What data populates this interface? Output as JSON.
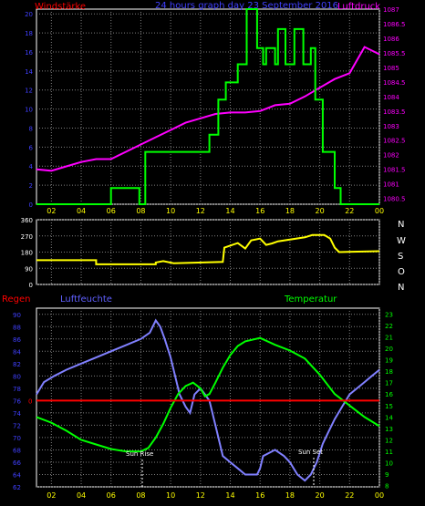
{
  "colors": {
    "background": "#000000",
    "plot_bg": "#000000",
    "grid": "#808080",
    "wind": "#00ff00",
    "pressure": "#ff00ff",
    "direction": "#ffff00",
    "humidity": "#8080ff",
    "temperature": "#00ff00",
    "rain": "#ff0000",
    "axis_text_left": "#4040ff",
    "axis_text_right": "#ff00ff",
    "time_tick": "#ffff00"
  },
  "panel1": {
    "left_label": "Windstärke",
    "title": "24 hours graph day 23 September 2016",
    "right_label": "Luftdruck"
  },
  "panel2": {
    "compass": [
      "N",
      "W",
      "S",
      "O",
      "N"
    ]
  },
  "panel3": {
    "rain_label": "Regen",
    "humidity_label": "Luftfeuchte",
    "temp_label": "Temperatur",
    "sunrise": "Sun Rise",
    "sunset": "Sun Set"
  },
  "x_tick_labels": [
    "02",
    "04",
    "06",
    "08",
    "10",
    "12",
    "14",
    "16",
    "18",
    "20",
    "22",
    "00"
  ],
  "chart_data": [
    {
      "type": "line",
      "x_hours": [
        1,
        24
      ],
      "x_tick_labels": [
        "02",
        "04",
        "06",
        "08",
        "10",
        "12",
        "14",
        "16",
        "18",
        "20",
        "22",
        "00"
      ],
      "y_left": {
        "label": "Windstärke",
        "ticks": [
          0,
          2,
          4,
          6,
          8,
          10,
          12,
          14,
          16,
          18,
          20
        ],
        "range": [
          0,
          20.5
        ]
      },
      "y_right": {
        "label": "Luftdruck",
        "ticks": [
          1080.5,
          1081,
          1081.5,
          1082,
          1082.5,
          1083,
          1083.5,
          1084,
          1084.5,
          1085,
          1085.5,
          1086,
          1086.5,
          1087
        ],
        "range": [
          1080.3,
          1087
        ]
      },
      "series": [
        {
          "name": "Windstärke",
          "axis": "left",
          "step": true,
          "points": [
            [
              1,
              0
            ],
            [
              6,
              0
            ],
            [
              6,
              1.7
            ],
            [
              7.9,
              1.7
            ],
            [
              7.9,
              0
            ],
            [
              8.3,
              0
            ],
            [
              8.3,
              5.5
            ],
            [
              12.6,
              5.5
            ],
            [
              12.6,
              7.3
            ],
            [
              13.2,
              7.3
            ],
            [
              13.2,
              11
            ],
            [
              13.7,
              11
            ],
            [
              13.7,
              12.8
            ],
            [
              14.5,
              12.8
            ],
            [
              14.5,
              14.7
            ],
            [
              15.1,
              14.7
            ],
            [
              15.1,
              20.5
            ],
            [
              15.8,
              20.5
            ],
            [
              15.8,
              16.4
            ],
            [
              16.2,
              16.4
            ],
            [
              16.2,
              14.7
            ],
            [
              16.4,
              14.7
            ],
            [
              16.4,
              16.4
            ],
            [
              17,
              16.4
            ],
            [
              17,
              14.7
            ],
            [
              17.2,
              14.7
            ],
            [
              17.2,
              18.4
            ],
            [
              17.7,
              18.4
            ],
            [
              17.7,
              14.7
            ],
            [
              18.3,
              14.7
            ],
            [
              18.3,
              18.4
            ],
            [
              18.9,
              18.4
            ],
            [
              18.9,
              14.7
            ],
            [
              19.4,
              14.7
            ],
            [
              19.4,
              16.4
            ],
            [
              19.7,
              16.4
            ],
            [
              19.7,
              11
            ],
            [
              20.2,
              11
            ],
            [
              20.2,
              5.5
            ],
            [
              21,
              5.5
            ],
            [
              21,
              1.7
            ],
            [
              21.4,
              1.7
            ],
            [
              21.4,
              0
            ],
            [
              24,
              0
            ]
          ]
        },
        {
          "name": "Luftdruck",
          "axis": "right",
          "points": [
            [
              1,
              1081.5
            ],
            [
              2,
              1081.45
            ],
            [
              3,
              1081.6
            ],
            [
              4,
              1081.75
            ],
            [
              5,
              1081.85
            ],
            [
              6,
              1081.85
            ],
            [
              7,
              1082.1
            ],
            [
              8,
              1082.35
            ],
            [
              9,
              1082.6
            ],
            [
              10,
              1082.85
            ],
            [
              11,
              1083.1
            ],
            [
              12,
              1083.25
            ],
            [
              13,
              1083.4
            ],
            [
              14,
              1083.45
            ],
            [
              15,
              1083.45
            ],
            [
              16,
              1083.5
            ],
            [
              17,
              1083.7
            ],
            [
              18,
              1083.75
            ],
            [
              19,
              1084.0
            ],
            [
              20,
              1084.3
            ],
            [
              21,
              1084.6
            ],
            [
              22,
              1084.8
            ],
            [
              23,
              1085.7
            ],
            [
              24,
              1085.45
            ]
          ]
        }
      ]
    },
    {
      "type": "line",
      "x_hours": [
        1,
        24
      ],
      "y_left": {
        "ticks": [
          0,
          90,
          180,
          270,
          360
        ],
        "range": [
          0,
          360
        ]
      },
      "y_right": {
        "ticks": [
          "N",
          "W",
          "S",
          "O",
          "N"
        ]
      },
      "series": [
        {
          "name": "Windrichtung",
          "step": true,
          "points": [
            [
              1,
              135
            ],
            [
              5,
              135
            ],
            [
              5,
              112
            ],
            [
              9,
              112
            ],
            [
              9,
              122
            ],
            [
              9.5,
              130
            ],
            [
              10.2,
              118
            ],
            [
              13.5,
              125
            ],
            [
              13.6,
              205
            ],
            [
              14.5,
              230
            ],
            [
              15,
              200
            ],
            [
              15.4,
              245
            ],
            [
              16,
              255
            ],
            [
              16.4,
              220
            ],
            [
              16.8,
              228
            ],
            [
              17.2,
              240
            ],
            [
              19,
              262
            ],
            [
              19.5,
              275
            ],
            [
              20.3,
              275
            ],
            [
              20.7,
              255
            ],
            [
              21,
              205
            ],
            [
              21.3,
              180
            ],
            [
              24,
              185
            ]
          ]
        }
      ]
    },
    {
      "type": "line",
      "x_hours": [
        1,
        24
      ],
      "y_left": {
        "label": "Luftfeuchte",
        "ticks": [
          62,
          64,
          66,
          68,
          70,
          72,
          74,
          76,
          78,
          80,
          82,
          84,
          86,
          88,
          90
        ],
        "range": [
          62,
          91
        ]
      },
      "y_right": {
        "label": "Temperatur",
        "ticks": [
          8,
          9,
          10,
          11,
          12,
          13,
          14,
          15,
          16,
          17,
          18,
          19,
          20,
          21,
          22,
          23
        ],
        "range": [
          7.9,
          23.5
        ]
      },
      "series": [
        {
          "name": "Regen",
          "axis": "left",
          "zero_marker": "0",
          "points": [
            [
              1,
              76
            ],
            [
              24,
              76
            ]
          ]
        },
        {
          "name": "Luftfeuchte",
          "axis": "left",
          "step": true,
          "points": [
            [
              1,
              77
            ],
            [
              1.5,
              79
            ],
            [
              2.2,
              80
            ],
            [
              3,
              81
            ],
            [
              4,
              82
            ],
            [
              5,
              83
            ],
            [
              6,
              84
            ],
            [
              7,
              85
            ],
            [
              8,
              86
            ],
            [
              8.6,
              87
            ],
            [
              9,
              89
            ],
            [
              9.3,
              88
            ],
            [
              9.6,
              86
            ],
            [
              10,
              83
            ],
            [
              10.3,
              80
            ],
            [
              10.6,
              77
            ],
            [
              11,
              75
            ],
            [
              11.3,
              74
            ],
            [
              11.6,
              77
            ],
            [
              12,
              78
            ],
            [
              12.3,
              77
            ],
            [
              12.6,
              76
            ],
            [
              13,
              72
            ],
            [
              13.5,
              67
            ],
            [
              14,
              66
            ],
            [
              14.5,
              65
            ],
            [
              15,
              64
            ],
            [
              15.8,
              64
            ],
            [
              16,
              65
            ],
            [
              16.2,
              67
            ],
            [
              17,
              68
            ],
            [
              17.6,
              67
            ],
            [
              18,
              66
            ],
            [
              18.5,
              64
            ],
            [
              19,
              63
            ],
            [
              19.4,
              64
            ],
            [
              19.8,
              66
            ],
            [
              20.2,
              69
            ],
            [
              20.6,
              71
            ],
            [
              21,
              73
            ],
            [
              21.5,
              75
            ],
            [
              22,
              77
            ],
            [
              22.5,
              78
            ],
            [
              23,
              79
            ],
            [
              23.5,
              80
            ],
            [
              24,
              81
            ]
          ]
        },
        {
          "name": "Temperatur",
          "axis": "right",
          "points": [
            [
              1,
              14
            ],
            [
              2,
              13.5
            ],
            [
              3,
              12.8
            ],
            [
              4,
              12.0
            ],
            [
              5,
              11.6
            ],
            [
              6,
              11.2
            ],
            [
              7,
              11.0
            ],
            [
              8,
              11.0
            ],
            [
              8.5,
              11.3
            ],
            [
              9,
              12.2
            ],
            [
              9.5,
              13.4
            ],
            [
              10,
              14.8
            ],
            [
              10.5,
              16.0
            ],
            [
              11,
              16.7
            ],
            [
              11.5,
              17.0
            ],
            [
              12,
              16.5
            ],
            [
              12.3,
              15.8
            ],
            [
              12.6,
              16.0
            ],
            [
              13,
              17.0
            ],
            [
              13.5,
              18.3
            ],
            [
              14,
              19.4
            ],
            [
              14.5,
              20.2
            ],
            [
              15,
              20.6
            ],
            [
              16,
              20.9
            ],
            [
              17,
              20.3
            ],
            [
              18,
              19.8
            ],
            [
              19,
              19.1
            ],
            [
              20,
              17.7
            ],
            [
              21,
              16.0
            ],
            [
              22,
              15.0
            ],
            [
              23,
              14.0
            ],
            [
              24,
              13.2
            ]
          ]
        }
      ]
    }
  ]
}
